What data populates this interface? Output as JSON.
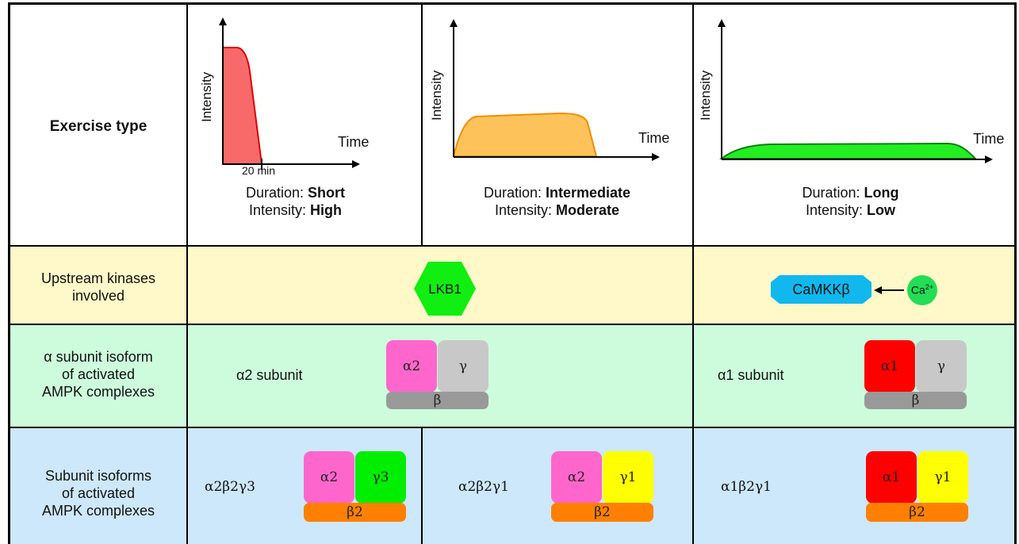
{
  "row_labels": {
    "exercise_type": "Exercise type",
    "upstream_line1": "Upstream kinases",
    "upstream_line2": "involved",
    "alpha_line1": "α subunit isoform",
    "alpha_line2": "of activated",
    "alpha_line3": "AMPK complexes",
    "subunit_line1": "Subunit isoforms",
    "subunit_line2": "of activated",
    "subunit_line3": "AMPK complexes"
  },
  "graphs": {
    "y_label": "Intensity",
    "x_label": "Time",
    "short_marker": "20 min"
  },
  "exercise_columns": [
    {
      "duration_prefix": "Duration: ",
      "duration": "Short",
      "intensity_prefix": "Intensity: ",
      "intensity": "High",
      "fill_color": "#f86a6a",
      "stroke_color": "#e00000"
    },
    {
      "duration_prefix": "Duration: ",
      "duration": "Intermediate",
      "intensity_prefix": "Intensity: ",
      "intensity": "Moderate",
      "fill_color": "#fdc35a",
      "stroke_color": "#f28c00"
    },
    {
      "duration_prefix": "Duration: ",
      "duration": "Long",
      "intensity_prefix": "Intensity: ",
      "intensity": "Low",
      "fill_color": "#22ee22",
      "stroke_color": "#108010"
    }
  ],
  "kinases": {
    "lkb1": "LKB1",
    "camkk": "CaMKKβ",
    "calcium": "Ca",
    "calcium_sup": "2+"
  },
  "alpha_row": {
    "left_label": "α2 subunit",
    "left_alpha": "α2",
    "right_label": "α1 subunit",
    "right_alpha": "α1",
    "gamma": "γ",
    "beta": "β"
  },
  "complexes": [
    {
      "label": "α2β2γ3",
      "alpha": "α2",
      "gamma": "γ3",
      "beta": "β2",
      "alpha_color": "#ff66cc",
      "gamma_color": "#00ee00"
    },
    {
      "label": "α2β2γ1",
      "alpha": "α2",
      "gamma": "γ1",
      "beta": "β2",
      "alpha_color": "#ff66cc",
      "gamma_color": "#ffff00"
    },
    {
      "label": "α1β2γ1",
      "alpha": "α1",
      "gamma": "γ1",
      "beta": "β2",
      "alpha_color": "#ff0000",
      "gamma_color": "#ffff00"
    }
  ],
  "colors": {
    "row_upstream_bg": "#fff8c8",
    "row_alpha_bg": "#cdfcdc",
    "row_subunit_bg": "#cde8fa",
    "lkb1": "#11ee11",
    "camkk": "#10b8ee",
    "calcium": "#22dd55",
    "alpha2": "#ff66cc",
    "alpha1": "#ff0000",
    "gamma_grey": "#c8c8c8",
    "beta_grey": "#999999",
    "beta2": "#ff8000"
  }
}
